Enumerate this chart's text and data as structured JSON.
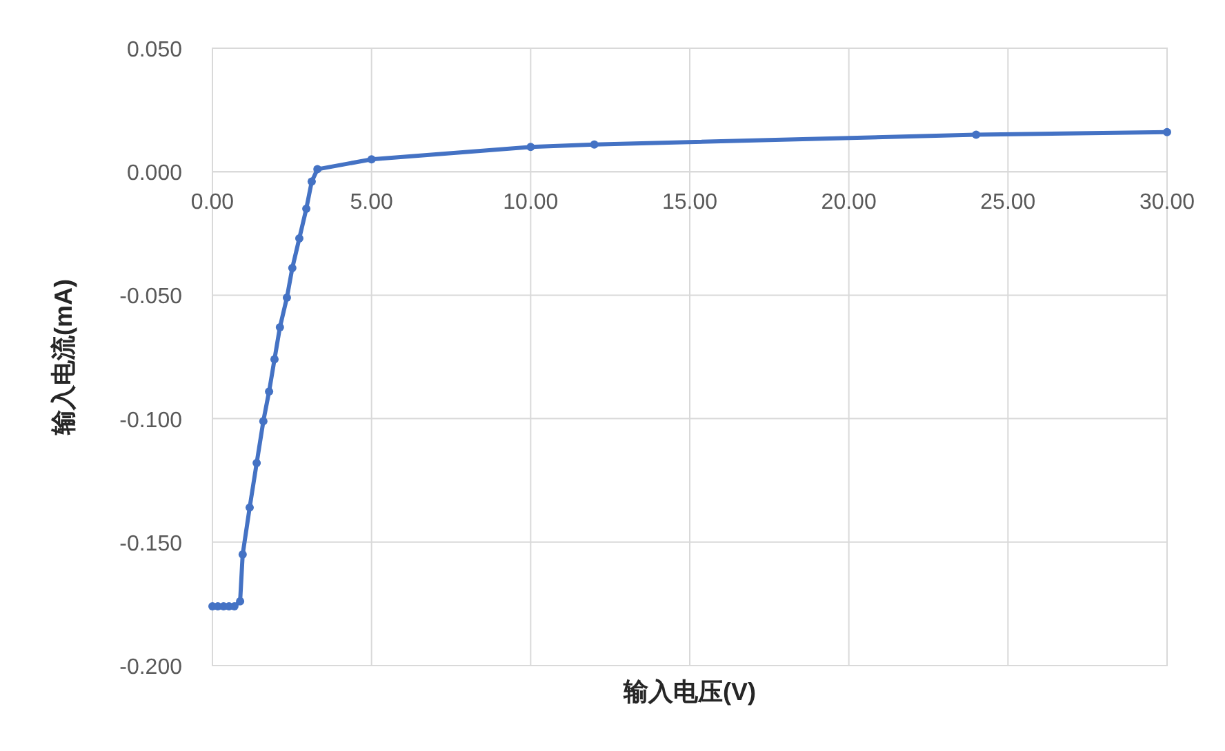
{
  "chart_data": {
    "type": "line",
    "xlabel": "输入电压(V)",
    "ylabel": "输入电流(mA)",
    "x": [
      0,
      0.17,
      0.35,
      0.52,
      0.69,
      0.87,
      0.95,
      1.17,
      1.39,
      1.6,
      1.78,
      1.95,
      2.12,
      2.34,
      2.51,
      2.73,
      2.95,
      3.12,
      3.3,
      5,
      10,
      12,
      24,
      30
    ],
    "series": [
      {
        "color": "#4472c4",
        "values": [
          -0.176,
          -0.176,
          -0.176,
          -0.176,
          -0.176,
          -0.174,
          -0.155,
          -0.136,
          -0.118,
          -0.101,
          -0.089,
          -0.076,
          -0.063,
          -0.051,
          -0.039,
          -0.027,
          -0.015,
          -0.004,
          0.001,
          0.005,
          0.01,
          0.011,
          0.015,
          0.016
        ]
      }
    ],
    "xlim": [
      0,
      30
    ],
    "ylim": [
      -0.2,
      0.05
    ],
    "xticks": [
      {
        "value": 0,
        "label": "0.00"
      },
      {
        "value": 5,
        "label": "5.00"
      },
      {
        "value": 10,
        "label": "10.00"
      },
      {
        "value": 15,
        "label": "15.00"
      },
      {
        "value": 20,
        "label": "20.00"
      },
      {
        "value": 25,
        "label": "25.00"
      },
      {
        "value": 30,
        "label": "30.00"
      }
    ],
    "yticks": [
      {
        "value": 0.05,
        "label": "0.050"
      },
      {
        "value": 0,
        "label": "0.000"
      },
      {
        "value": -0.05,
        "label": "-0.050"
      },
      {
        "value": -0.1,
        "label": "-0.100"
      },
      {
        "value": -0.15,
        "label": "-0.150"
      },
      {
        "value": -0.2,
        "label": "-0.200"
      }
    ],
    "grid": true,
    "marker": "circle",
    "line_style": "solid"
  }
}
